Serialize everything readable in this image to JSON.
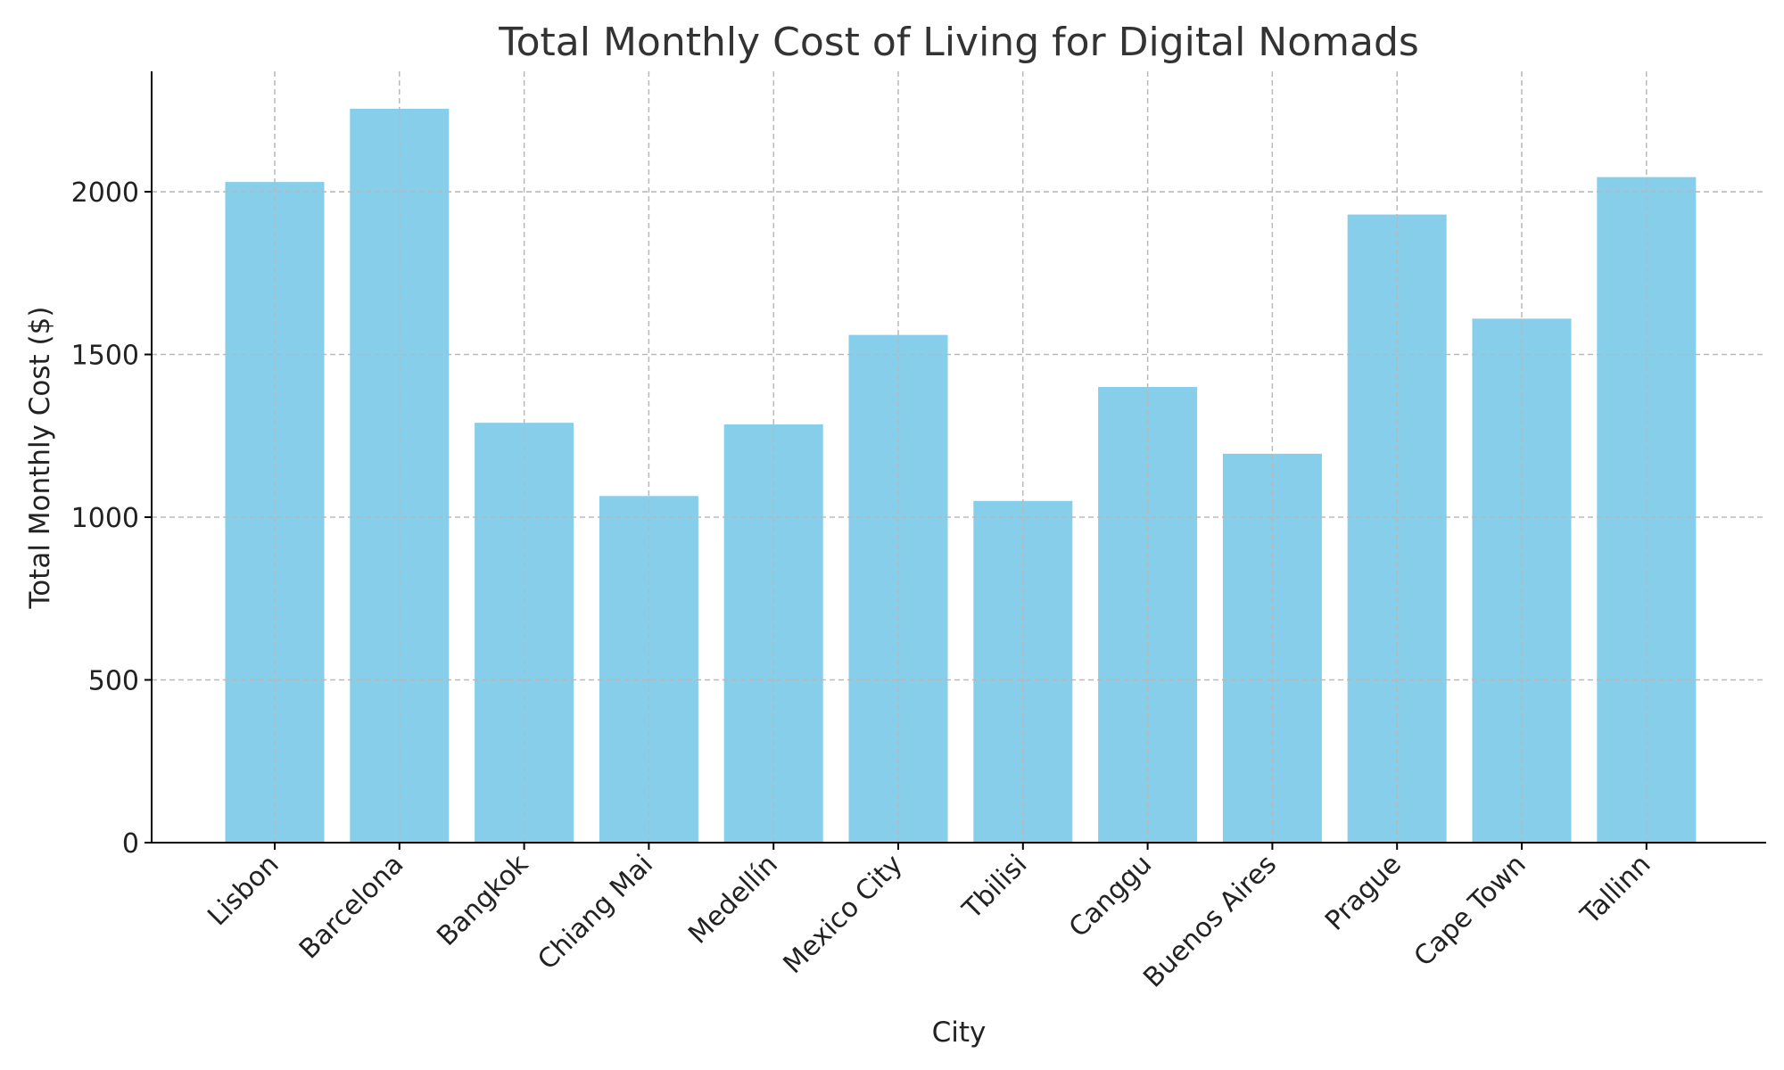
{
  "chart_data": {
    "type": "bar",
    "title": "Total Monthly Cost of Living for Digital Nomads",
    "xlabel": "City",
    "ylabel": "Total Monthly Cost ($)",
    "categories": [
      "Lisbon",
      "Barcelona",
      "Bangkok",
      "Chiang Mai",
      "Medellín",
      "Mexico City",
      "Tbilisi",
      "Canggu",
      "Buenos Aires",
      "Prague",
      "Cape Town",
      "Tallinn"
    ],
    "values": [
      2030,
      2255,
      1290,
      1065,
      1285,
      1560,
      1050,
      1400,
      1195,
      1930,
      1610,
      2045
    ],
    "ylim": [
      0,
      2370
    ],
    "yticks": [
      0,
      500,
      1000,
      1500,
      2000
    ],
    "grid": true,
    "bar_color": "#87CEEB"
  }
}
